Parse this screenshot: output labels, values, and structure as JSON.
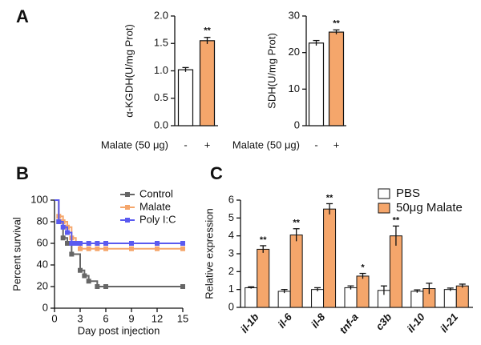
{
  "chart_data": [
    {
      "type": "bar",
      "panel_label": "A",
      "ylabel": "α-KGDH(U/mg Prot)",
      "xlabel": "Malate (50 μg)",
      "categories": [
        "-",
        "+"
      ],
      "values": [
        1.02,
        1.55
      ],
      "errors": [
        0.04,
        0.06
      ],
      "colors": [
        "#ffffff",
        "#f5a66b"
      ],
      "annotations": [
        null,
        "**"
      ],
      "ylim": [
        0,
        2
      ],
      "yticks": [
        {
          "value": 0,
          "label": "0.0"
        },
        0.5,
        {
          "value": 1,
          "label": "1.0"
        },
        1.5,
        {
          "value": 2,
          "label": "2.0"
        }
      ]
    },
    {
      "type": "bar",
      "ylabel": "SDH(U/mg Prot)",
      "xlabel": "Malate (50 μg)",
      "categories": [
        "-",
        "+"
      ],
      "values": [
        22.6,
        25.6
      ],
      "errors": [
        0.7,
        0.6
      ],
      "colors": [
        "#ffffff",
        "#f5a66b"
      ],
      "annotations": [
        null,
        "**"
      ],
      "ylim": [
        0,
        30
      ],
      "yticks": [
        0,
        10,
        20,
        30
      ]
    },
    {
      "type": "line",
      "step": true,
      "panel_label": "B",
      "xlabel": "Day post injection",
      "ylabel": "Percent survival",
      "xlim": [
        0,
        15
      ],
      "xticks": [
        0,
        3,
        6,
        9,
        12,
        15
      ],
      "ylim": [
        0,
        100
      ],
      "yticks": [
        0,
        20,
        40,
        60,
        80,
        100
      ],
      "legend": "upper right",
      "series": [
        {
          "name": "Control",
          "color": "#666666",
          "x": [
            0,
            0.5,
            1,
            1.5,
            2,
            3,
            3.5,
            4,
            5,
            6,
            15
          ],
          "values": [
            100,
            80,
            65,
            60,
            50,
            35,
            30,
            25,
            20,
            20,
            20
          ]
        },
        {
          "name": "Malate",
          "color": "#f5a66b",
          "x": [
            0,
            0.5,
            1,
            1.5,
            2,
            2.5,
            3,
            4,
            5,
            6,
            9,
            12,
            15
          ],
          "values": [
            100,
            85,
            80,
            75,
            65,
            60,
            55,
            55,
            55,
            55,
            55,
            55,
            55
          ]
        },
        {
          "name": "Poly I:C",
          "color": "#5a5af0",
          "x": [
            0,
            0.5,
            1,
            1.5,
            2,
            2.5,
            3,
            4,
            5,
            6,
            9,
            12,
            15
          ],
          "values": [
            100,
            80,
            75,
            70,
            60,
            60,
            60,
            60,
            60,
            60,
            60,
            60,
            60
          ]
        }
      ]
    },
    {
      "type": "grouped_bar",
      "panel_label": "C",
      "ylabel": "Relative expression",
      "categories": [
        "il-1b",
        "il-6",
        "il-8",
        "tnf-a",
        "c3b",
        "il-10",
        "il-21"
      ],
      "annotations": [
        "**",
        "**",
        "**",
        "*",
        "**",
        null,
        null
      ],
      "ylim": [
        0,
        6
      ],
      "yticks": [
        0,
        1,
        2,
        3,
        4,
        5,
        6
      ],
      "legend": "upper right",
      "series": [
        {
          "name": "PBS",
          "color": "#ffffff",
          "values": [
            1.1,
            0.9,
            1.0,
            1.1,
            0.95,
            0.9,
            1.0
          ],
          "errors": [
            0.05,
            0.1,
            0.1,
            0.1,
            0.25,
            0.08,
            0.08
          ]
        },
        {
          "name": "50μg Malate",
          "color": "#f5a66b",
          "values": [
            3.25,
            4.05,
            5.5,
            1.75,
            4.0,
            1.05,
            1.2
          ],
          "errors": [
            0.2,
            0.35,
            0.3,
            0.15,
            0.55,
            0.3,
            0.1
          ]
        }
      ]
    }
  ]
}
